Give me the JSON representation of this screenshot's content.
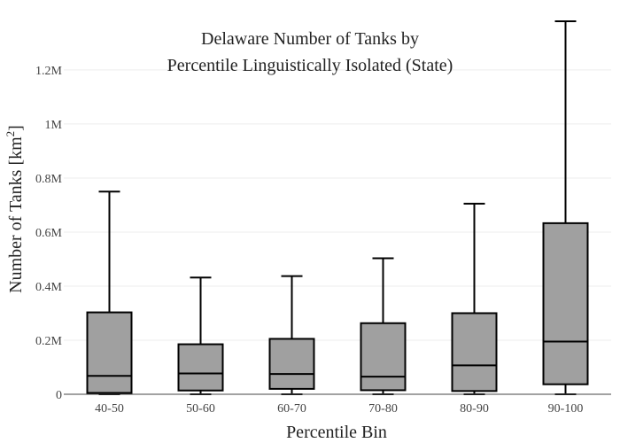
{
  "chart_data": {
    "type": "box",
    "title_lines": [
      "Delaware Number of Tanks by",
      "Percentile Linguistically Isolated (State)"
    ],
    "xlabel": "Percentile Bin",
    "ylabel": "Number of Tanks  [km",
    "ylabel_sup": "2",
    "ylabel_close": "]",
    "ylim": [
      0,
      1380000
    ],
    "yticks": [
      0,
      200000,
      400000,
      600000,
      800000,
      1000000,
      1200000
    ],
    "yticklabels": [
      "0",
      "0.2M",
      "0.4M",
      "0.6M",
      "0.8M",
      "1M",
      "1.2M"
    ],
    "grid": true,
    "categories": [
      "40-50",
      "50-60",
      "60-70",
      "70-80",
      "80-90",
      "90-100"
    ],
    "boxes": [
      {
        "min": 0,
        "q1": 5000,
        "median": 68000,
        "q3": 303000,
        "max": 750000
      },
      {
        "min": 0,
        "q1": 14000,
        "median": 77000,
        "q3": 185000,
        "max": 432000
      },
      {
        "min": 0,
        "q1": 20000,
        "median": 75000,
        "q3": 205000,
        "max": 437000
      },
      {
        "min": 0,
        "q1": 15000,
        "median": 65000,
        "q3": 263000,
        "max": 503000
      },
      {
        "min": 0,
        "q1": 12000,
        "median": 107000,
        "q3": 300000,
        "max": 705000
      },
      {
        "min": 0,
        "q1": 37000,
        "median": 195000,
        "q3": 633000,
        "max": 1380000
      }
    ],
    "colors": {
      "box_fill": "#a0a0a0",
      "line": "#000000",
      "grid": "#eeeeee",
      "axis": "#444444"
    }
  }
}
